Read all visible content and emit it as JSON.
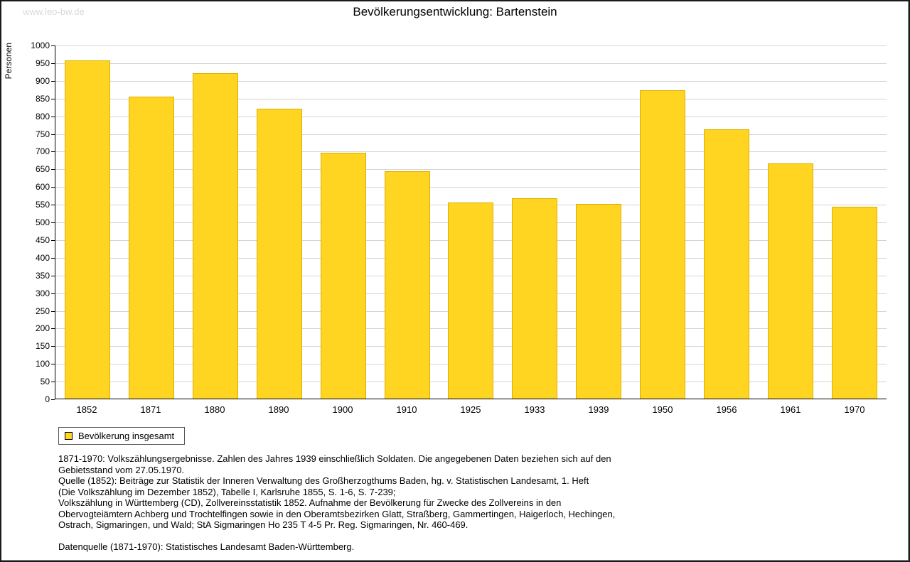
{
  "watermark": "www.leo-bw.de",
  "title": "Bevölkerungsentwicklung: Bartenstein",
  "legend": {
    "label": "Bevölkerung insgesamt"
  },
  "chart_data": {
    "type": "bar",
    "title": "Bevölkerungsentwicklung: Bartenstein",
    "xlabel": "",
    "ylabel": "Personen",
    "categories": [
      "1852",
      "1871",
      "1880",
      "1890",
      "1900",
      "1910",
      "1925",
      "1933",
      "1939",
      "1950",
      "1956",
      "1961",
      "1970"
    ],
    "values": [
      958,
      856,
      922,
      820,
      696,
      644,
      556,
      568,
      551,
      873,
      762,
      666,
      544
    ],
    "series_name": "Bevölkerung insgesamt",
    "ylim": [
      0,
      1000
    ],
    "ytick_step": 50,
    "grid": true,
    "legend_position": "bottom-left",
    "bar_color": "#FFD521",
    "bar_border": "#DDAF00"
  },
  "notes": {
    "lines": [
      "1871-1970: Volkszählungsergebnisse. Zahlen des Jahres 1939 einschließlich Soldaten. Die angegebenen Daten beziehen sich auf den",
      "Gebietsstand vom 27.05.1970.",
      "Quelle (1852): Beiträge zur Statistik der Inneren Verwaltung des Großherzogthums Baden, hg. v. Statistischen Landesamt, 1. Heft",
      "(Die Volkszählung im Dezember 1852), Tabelle I, Karlsruhe 1855, S. 1-6, S. 7-239;",
      "Volkszählung in Württemberg (CD), Zollvereinsstatistik 1852. Aufnahme der Bevölkerung für Zwecke des Zollvereins in den",
      "Obervogteiämtern Achberg und Trochtelfingen sowie in den Oberamtsbezirken Glatt, Straßberg, Gammertingen, Haigerloch, Hechingen,",
      "Ostrach, Sigmaringen, und Wald; StA Sigmaringen Ho 235 T 4-5 Pr. Reg. Sigmaringen, Nr. 460-469.",
      "",
      "Datenquelle (1871-1970): Statistisches Landesamt Baden-Württemberg."
    ]
  }
}
